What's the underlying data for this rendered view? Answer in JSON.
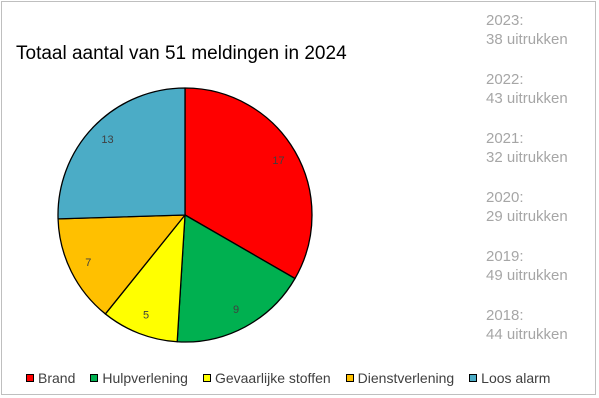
{
  "chart_data": {
    "type": "pie",
    "title": "Totaal aantal van 51 meldingen in 2024",
    "categories": [
      "Brand",
      "Hulpverlening",
      "Gevaarlijke stoffen",
      "Dienstverlening",
      "Loos alarm"
    ],
    "values": [
      17,
      9,
      5,
      7,
      13
    ],
    "colors": [
      "#ff0000",
      "#00b050",
      "#ffff00",
      "#ffc000",
      "#4bacc6"
    ],
    "legend_position": "bottom"
  },
  "history": [
    {
      "year": "2023:",
      "count": "38 uitrukken"
    },
    {
      "year": "2022:",
      "count": "43 uitrukken"
    },
    {
      "year": "2021:",
      "count": "32 uitrukken"
    },
    {
      "year": "2020:",
      "count": "29 uitrukken"
    },
    {
      "year": "2019:",
      "count": "49 uitrukken"
    },
    {
      "year": "2018:",
      "count": "44 uitrukken"
    }
  ]
}
